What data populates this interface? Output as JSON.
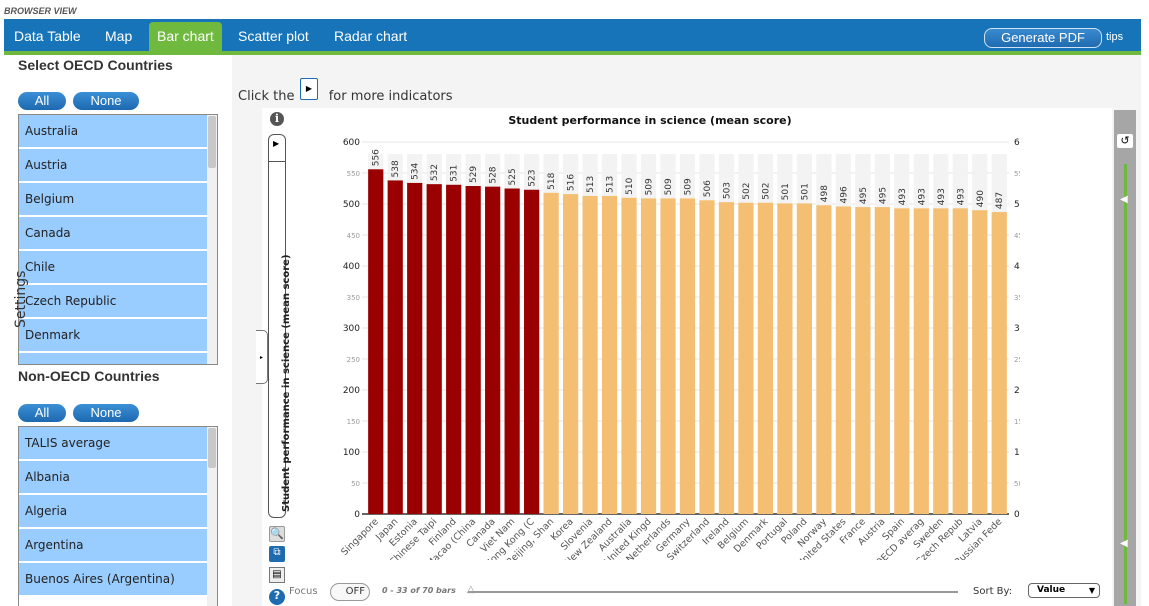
{
  "browser_label": "BROWSER VIEW",
  "tabs": [
    {
      "label": "Data Table"
    },
    {
      "label": "Map"
    },
    {
      "label": "Bar chart"
    },
    {
      "label": "Scatter plot"
    },
    {
      "label": "Radar chart"
    }
  ],
  "active_tab": "Bar chart",
  "generate_pdf_label": "Generate PDF",
  "tips_label": "tips",
  "oecd": {
    "title": "Select OECD Countries",
    "all_label": "All",
    "none_label": "None",
    "items": [
      "Australia",
      "Austria",
      "Belgium",
      "Canada",
      "Chile",
      "Czech Republic",
      "Denmark"
    ]
  },
  "non_oecd": {
    "title": "Non-OECD Countries",
    "all_label": "All",
    "none_label": "None",
    "items": [
      "TALIS average",
      "Albania",
      "Algeria",
      "Argentina",
      "Buenos Aires (Argentina)"
    ]
  },
  "hint": {
    "before": "Click the",
    "after": "for more indicators"
  },
  "settings_label": "Settings",
  "indicator_label": "Student performance in science (mean score)",
  "focus_label": "Focus",
  "focus_toggle": "OFF",
  "range_text": "0 - 33 of 70 bars",
  "sort_by_label": "Sort By:",
  "sort_value": "Value",
  "colors": {
    "highlight": "#9b0000",
    "normal": "#f5bf73",
    "tab_bar": "#1874b8",
    "accent_green": "#6fba3e",
    "list_item": "#99ccff"
  },
  "chart_data": {
    "type": "bar",
    "title": "Student performance in science (mean score)",
    "ylim": [
      0,
      600
    ],
    "y_ticks": [
      0,
      50,
      100,
      150,
      200,
      250,
      300,
      350,
      400,
      450,
      500,
      550,
      600
    ],
    "categories": [
      "Singapore",
      "Japan",
      "Estonia",
      "Chinese Taipi",
      "Finland",
      "Macao (China",
      "Canada",
      "Viet Nam",
      "Hong Kong (C",
      "Beijing, Shan",
      "Korea",
      "Slovenia",
      "New Zealand",
      "Australia",
      "United Kingd",
      "Netherlands",
      "Germany",
      "Switzerland",
      "Ireland",
      "Belgium",
      "Denmark",
      "Portugal",
      "Poland",
      "Norway",
      "United States",
      "France",
      "Austria",
      "Spain",
      "OECD averag",
      "Sweden",
      "Czech Repub",
      "Latvia",
      "Russian Fede"
    ],
    "values": [
      556,
      538,
      534,
      532,
      531,
      529,
      528,
      525,
      523,
      518,
      516,
      513,
      513,
      510,
      509,
      509,
      509,
      506,
      503,
      502,
      502,
      501,
      501,
      498,
      496,
      495,
      495,
      493,
      493,
      493,
      493,
      490,
      487
    ],
    "highlighted_count": 9
  }
}
